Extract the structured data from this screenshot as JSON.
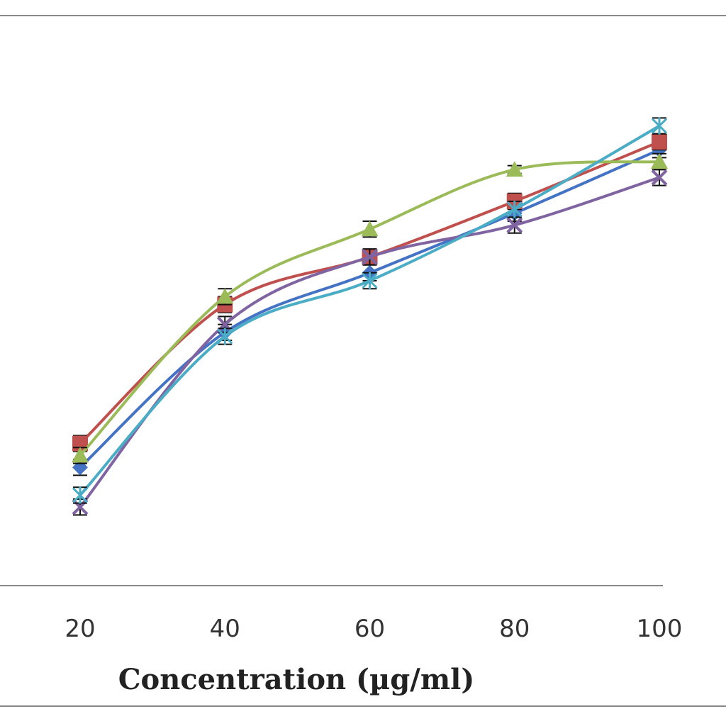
{
  "chart_data": {
    "type": "line",
    "title": "",
    "xlabel": "Concentration  (µg/ml)",
    "ylabel": "",
    "categories": [
      "20",
      "40",
      "60",
      "80",
      "100"
    ],
    "ylim": [
      0,
      100
    ],
    "grid": false,
    "legend": "none",
    "smooth": true,
    "series": [
      {
        "color": "#4472C4",
        "marker": "diamond",
        "values": [
          18,
          52,
          67,
          82,
          98
        ],
        "errors": [
          2,
          2,
          2,
          2,
          2
        ]
      },
      {
        "color": "#C0504D",
        "marker": "square",
        "values": [
          24,
          59,
          71,
          85,
          100
        ],
        "errors": [
          2,
          2,
          2,
          2,
          2
        ]
      },
      {
        "color": "#9BBB59",
        "marker": "triangle",
        "values": [
          21,
          61,
          78,
          93,
          95
        ],
        "errors": [
          2,
          2,
          2,
          1,
          2
        ]
      },
      {
        "color": "#8064A2",
        "marker": "x",
        "values": [
          8,
          54,
          71,
          79,
          91
        ],
        "errors": [
          2,
          2,
          2,
          2,
          2
        ]
      },
      {
        "color": "#4BACC6",
        "marker": "star",
        "values": [
          11,
          51,
          65,
          83,
          104
        ],
        "errors": [
          2,
          2,
          2,
          2,
          2
        ]
      }
    ]
  }
}
